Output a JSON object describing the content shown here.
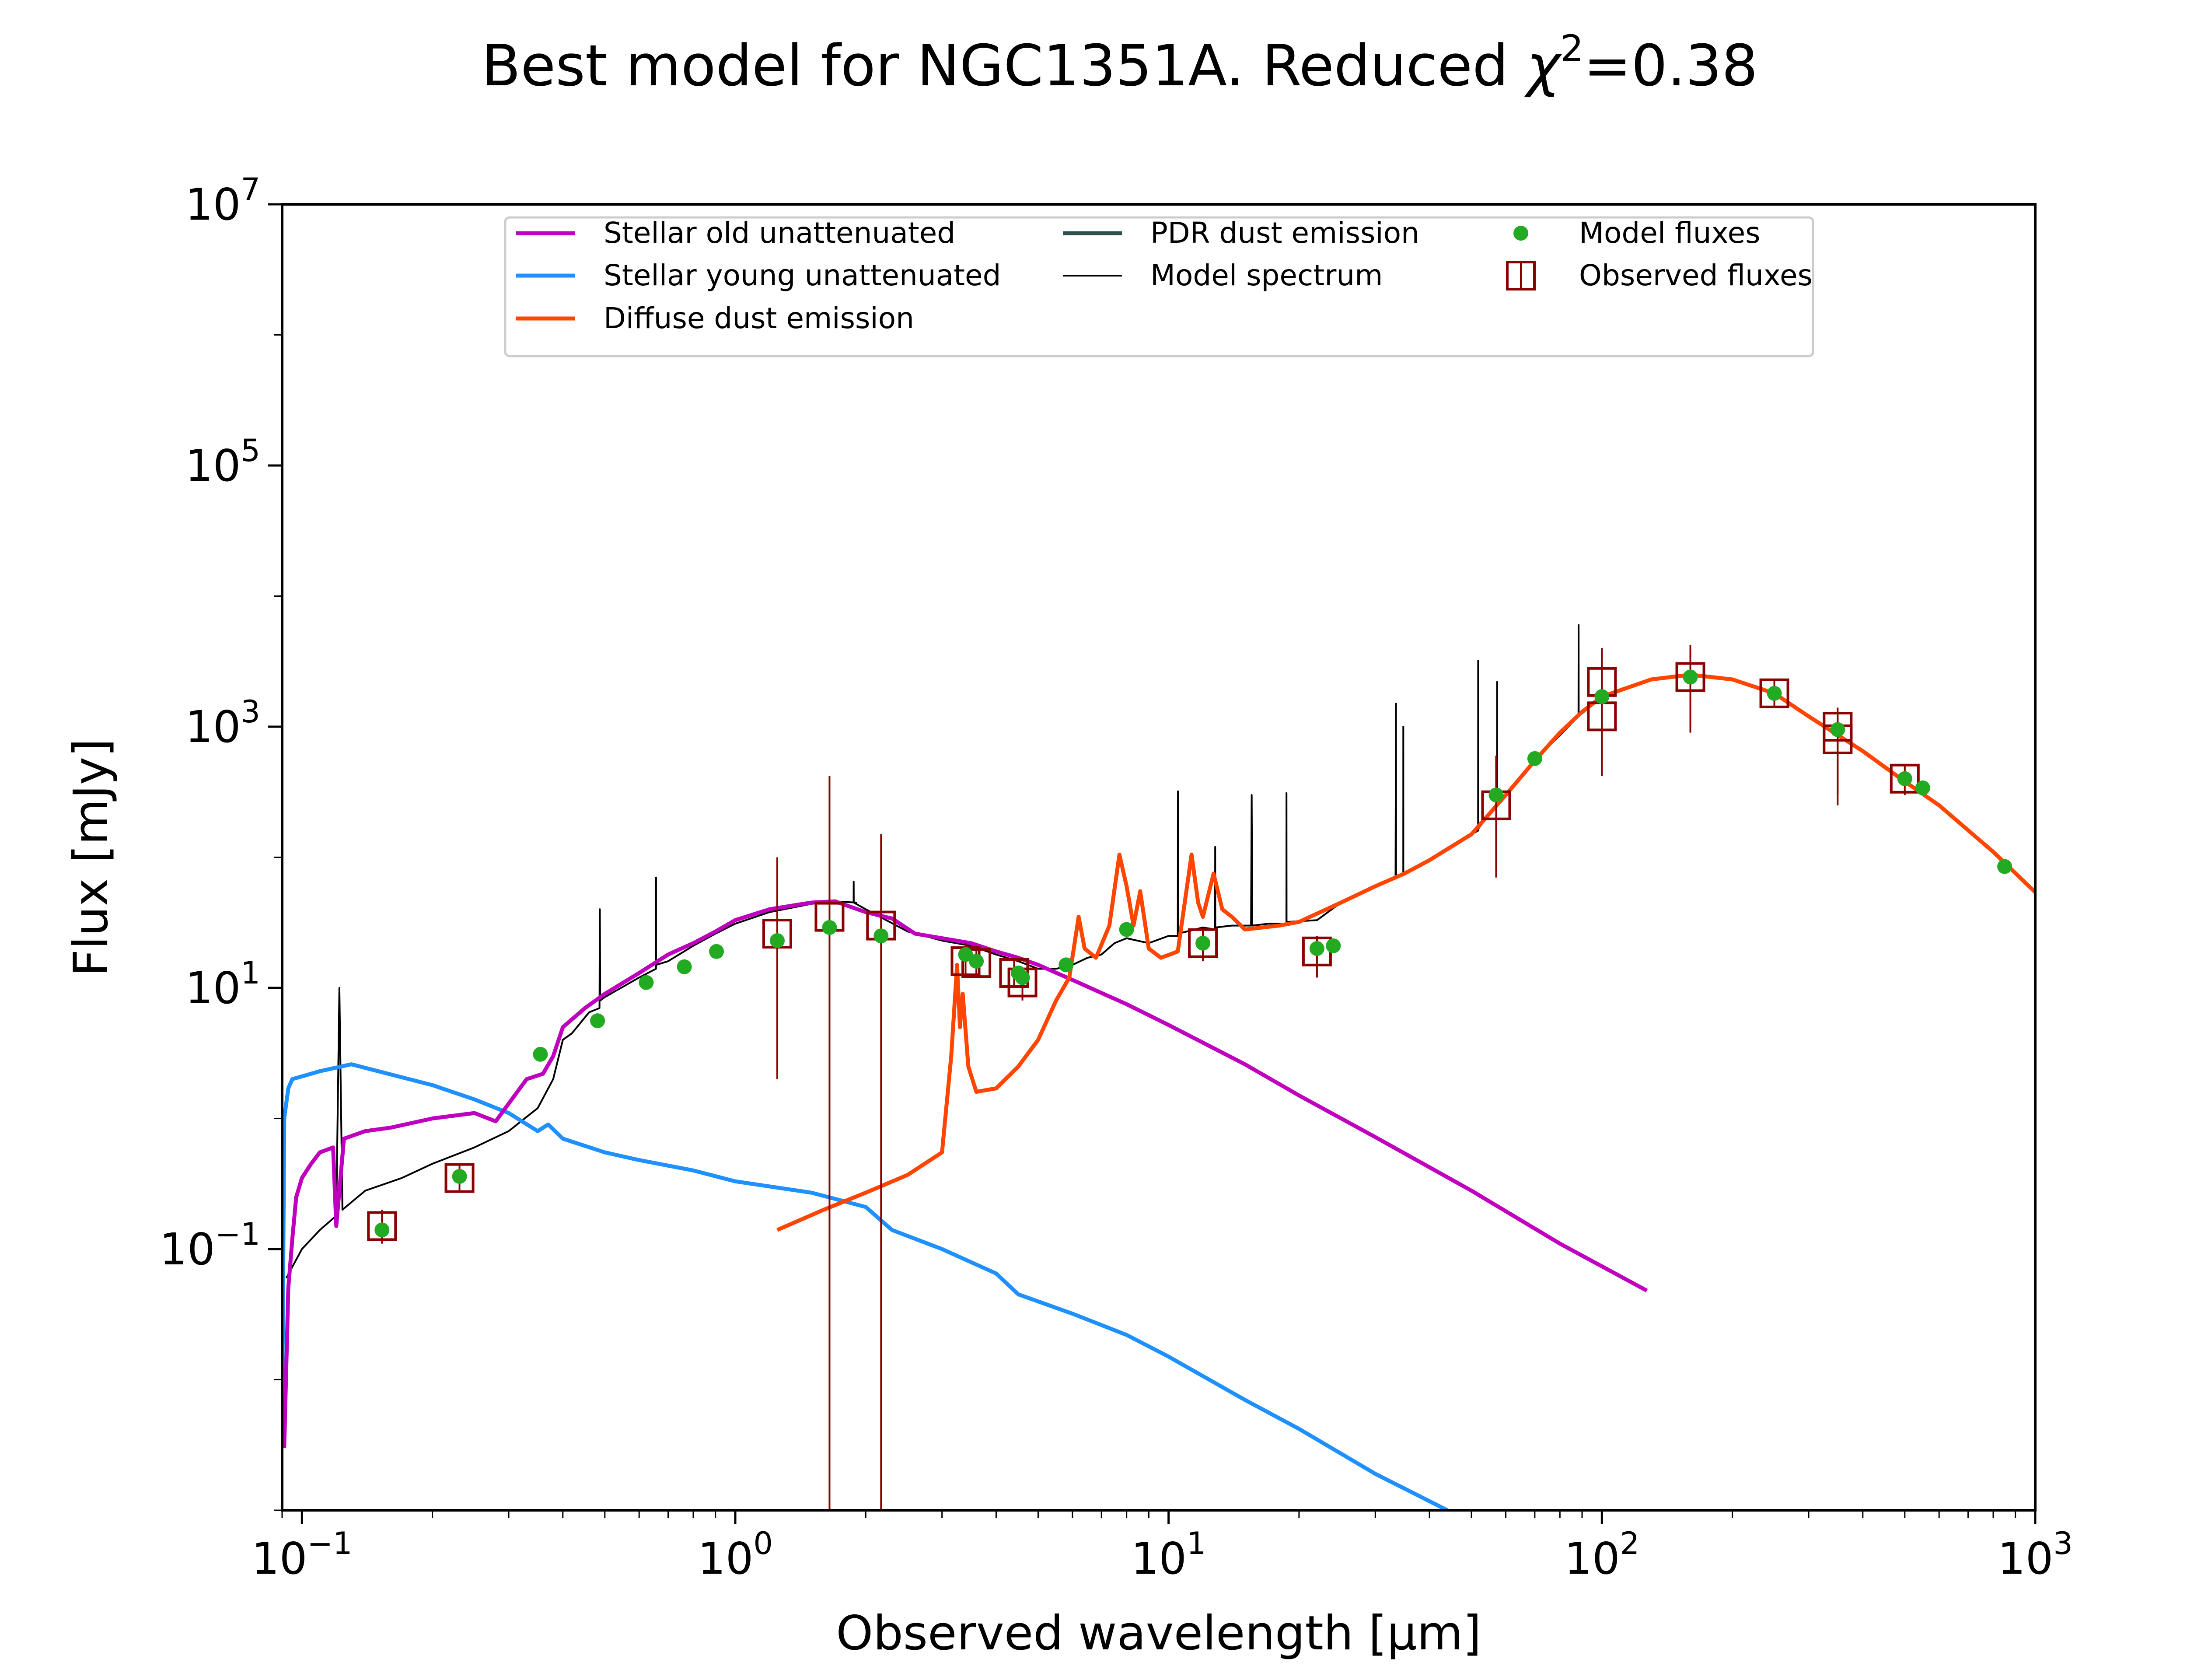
{
  "chart_data": {
    "type": "line",
    "title": "Best model for NGC1351A. Reduced χ²=0.38",
    "title_main": "Best model for NGC1351A. Reduced ",
    "title_chi": "χ",
    "title_sup": "2",
    "title_tail": "=0.38",
    "xlabel": "Observed wavelength [μm]",
    "ylabel": "Flux [mJy]",
    "x_scale": "log",
    "y_scale": "log",
    "xlim": [
      0.09,
      1000
    ],
    "ylim": [
      0.001,
      10000000
    ],
    "x_ticks": [
      {
        "value": 0.1,
        "base": "10",
        "exp": "−1"
      },
      {
        "value": 1,
        "base": "10",
        "exp": "0"
      },
      {
        "value": 10,
        "base": "10",
        "exp": "1"
      },
      {
        "value": 100,
        "base": "10",
        "exp": "2"
      },
      {
        "value": 1000,
        "base": "10",
        "exp": "3"
      }
    ],
    "y_ticks": [
      {
        "value": 0.1,
        "base": "10",
        "exp": "−1"
      },
      {
        "value": 10,
        "base": "10",
        "exp": "1"
      },
      {
        "value": 1000,
        "base": "10",
        "exp": "3"
      },
      {
        "value": 100000,
        "base": "10",
        "exp": "5"
      },
      {
        "value": 10000000,
        "base": "10",
        "exp": "7"
      }
    ],
    "grid": false,
    "legend_position": "top",
    "series": [
      {
        "name": "Stellar old unattenuated",
        "kind": "line",
        "color": "#bf00bf",
        "points": [
          [
            0.091,
            0.003
          ],
          [
            0.093,
            0.05
          ],
          [
            0.095,
            0.12
          ],
          [
            0.097,
            0.25
          ],
          [
            0.1,
            0.35
          ],
          [
            0.105,
            0.45
          ],
          [
            0.11,
            0.55
          ],
          [
            0.118,
            0.6
          ],
          [
            0.12,
            0.15
          ],
          [
            0.125,
            0.7
          ],
          [
            0.14,
            0.8
          ],
          [
            0.16,
            0.85
          ],
          [
            0.2,
            1.0
          ],
          [
            0.25,
            1.1
          ],
          [
            0.28,
            0.95
          ],
          [
            0.3,
            1.3
          ],
          [
            0.33,
            2.0
          ],
          [
            0.36,
            2.2
          ],
          [
            0.38,
            3.0
          ],
          [
            0.4,
            5.0
          ],
          [
            0.45,
            7.0
          ],
          [
            0.5,
            9.0
          ],
          [
            0.6,
            13
          ],
          [
            0.7,
            18
          ],
          [
            0.8,
            22
          ],
          [
            0.9,
            27
          ],
          [
            1.0,
            33
          ],
          [
            1.2,
            40
          ],
          [
            1.5,
            45
          ],
          [
            1.7,
            46
          ],
          [
            2.0,
            38
          ],
          [
            2.3,
            34
          ],
          [
            2.6,
            26
          ],
          [
            3.0,
            24
          ],
          [
            3.5,
            22
          ],
          [
            4.0,
            19
          ],
          [
            4.5,
            17
          ],
          [
            5.0,
            15
          ],
          [
            6.0,
            11.5
          ],
          [
            8.0,
            7.5
          ],
          [
            10.0,
            5.2
          ],
          [
            15.0,
            2.6
          ],
          [
            20.0,
            1.5
          ],
          [
            30.0,
            0.72
          ],
          [
            50.0,
            0.28
          ],
          [
            80.0,
            0.11
          ],
          [
            127.0,
            0.048
          ]
        ]
      },
      {
        "name": "Stellar young unattenuated",
        "kind": "line",
        "color": "#1e90ff",
        "points": [
          [
            0.09,
            0.004
          ],
          [
            0.091,
            1.0
          ],
          [
            0.093,
            1.7
          ],
          [
            0.095,
            2.0
          ],
          [
            0.1,
            2.1
          ],
          [
            0.11,
            2.3
          ],
          [
            0.13,
            2.6
          ],
          [
            0.15,
            2.3
          ],
          [
            0.2,
            1.8
          ],
          [
            0.25,
            1.4
          ],
          [
            0.3,
            1.1
          ],
          [
            0.35,
            0.8
          ],
          [
            0.37,
            0.9
          ],
          [
            0.4,
            0.7
          ],
          [
            0.5,
            0.55
          ],
          [
            0.6,
            0.48
          ],
          [
            0.8,
            0.4
          ],
          [
            1.0,
            0.33
          ],
          [
            1.5,
            0.27
          ],
          [
            2.0,
            0.21
          ],
          [
            2.3,
            0.14
          ],
          [
            3.0,
            0.1
          ],
          [
            4.0,
            0.065
          ],
          [
            4.5,
            0.045
          ],
          [
            6.0,
            0.032
          ],
          [
            8.0,
            0.022
          ],
          [
            10.0,
            0.015
          ],
          [
            15.0,
            0.007
          ],
          [
            20.0,
            0.0042
          ],
          [
            30.0,
            0.0019
          ],
          [
            44.0,
            0.001
          ]
        ]
      },
      {
        "name": "Diffuse dust emission",
        "kind": "line",
        "color": "#ff4500",
        "points": [
          [
            1.25,
            0.14
          ],
          [
            1.6,
            0.2
          ],
          [
            2.0,
            0.27
          ],
          [
            2.5,
            0.37
          ],
          [
            3.0,
            0.55
          ],
          [
            3.15,
            3
          ],
          [
            3.25,
            15
          ],
          [
            3.3,
            5
          ],
          [
            3.35,
            9
          ],
          [
            3.45,
            2.5
          ],
          [
            3.6,
            1.6
          ],
          [
            4.0,
            1.7
          ],
          [
            4.5,
            2.5
          ],
          [
            5.0,
            4.0
          ],
          [
            5.5,
            8.0
          ],
          [
            5.9,
            12
          ],
          [
            6.2,
            35
          ],
          [
            6.4,
            20
          ],
          [
            6.8,
            17
          ],
          [
            7.3,
            30
          ],
          [
            7.7,
            105
          ],
          [
            8.0,
            60
          ],
          [
            8.3,
            30
          ],
          [
            8.6,
            55
          ],
          [
            9.0,
            20
          ],
          [
            9.6,
            17
          ],
          [
            10.5,
            19
          ],
          [
            11.3,
            105
          ],
          [
            11.7,
            45
          ],
          [
            12.0,
            35
          ],
          [
            12.7,
            75
          ],
          [
            13.3,
            40
          ],
          [
            14.0,
            35
          ],
          [
            15.0,
            28
          ],
          [
            18.0,
            30
          ],
          [
            20.0,
            32
          ],
          [
            25.0,
            45
          ],
          [
            30.0,
            60
          ],
          [
            35.0,
            75
          ],
          [
            40.0,
            95
          ],
          [
            50.0,
            150
          ],
          [
            60.0,
            300
          ],
          [
            70.0,
            550
          ],
          [
            80.0,
            900
          ],
          [
            90.0,
            1300
          ],
          [
            100.0,
            1700
          ],
          [
            130.0,
            2300
          ],
          [
            160.0,
            2500
          ],
          [
            200.0,
            2300
          ],
          [
            250.0,
            1800
          ],
          [
            300.0,
            1200
          ],
          [
            400.0,
            650
          ],
          [
            500.0,
            380
          ],
          [
            600.0,
            250
          ],
          [
            800.0,
            110
          ],
          [
            1000.0,
            54
          ]
        ]
      },
      {
        "name": "PDR dust emission",
        "kind": "line",
        "color": "#2f4f4f",
        "points": []
      },
      {
        "name": "Model spectrum",
        "kind": "line",
        "color": "#000000",
        "points": [
          [
            0.092,
            0.06
          ],
          [
            0.1,
            0.1
          ],
          [
            0.11,
            0.14
          ],
          [
            0.12,
            0.18
          ],
          [
            0.122,
            10
          ],
          [
            0.124,
            0.2
          ],
          [
            0.14,
            0.28
          ],
          [
            0.17,
            0.35
          ],
          [
            0.2,
            0.45
          ],
          [
            0.25,
            0.6
          ],
          [
            0.3,
            0.8
          ],
          [
            0.35,
            1.2
          ],
          [
            0.38,
            2.0
          ],
          [
            0.4,
            4.0
          ],
          [
            0.42,
            4.5
          ],
          [
            0.46,
            6.5
          ],
          [
            0.486,
            7
          ],
          [
            0.487,
            40
          ],
          [
            0.488,
            8
          ],
          [
            0.5,
            8.5
          ],
          [
            0.6,
            12
          ],
          [
            0.6563,
            14
          ],
          [
            0.6564,
            70
          ],
          [
            0.6565,
            15
          ],
          [
            0.7,
            16
          ],
          [
            0.8,
            21
          ],
          [
            0.9,
            26
          ],
          [
            1.0,
            31
          ],
          [
            1.2,
            38
          ],
          [
            1.5,
            44
          ],
          [
            1.7,
            46
          ],
          [
            1.9,
            45
          ],
          [
            1.875,
            45
          ],
          [
            1.876,
            65
          ],
          [
            1.877,
            45
          ],
          [
            2.0,
            40
          ],
          [
            2.5,
            27
          ],
          [
            3.0,
            23
          ],
          [
            3.5,
            21
          ],
          [
            4.0,
            18
          ],
          [
            4.5,
            16
          ],
          [
            5.0,
            14
          ],
          [
            5.5,
            14
          ],
          [
            6.0,
            15
          ],
          [
            6.5,
            17
          ],
          [
            7.0,
            18
          ],
          [
            7.5,
            22
          ],
          [
            8.0,
            24
          ],
          [
            9.0,
            22
          ],
          [
            10.0,
            25
          ],
          [
            10.5,
            25
          ],
          [
            10.51,
            320
          ],
          [
            10.52,
            26
          ],
          [
            12.0,
            29
          ],
          [
            12.8,
            28
          ],
          [
            12.81,
            120
          ],
          [
            12.82,
            29
          ],
          [
            14.0,
            30
          ],
          [
            15.5,
            30
          ],
          [
            15.55,
            300
          ],
          [
            15.6,
            30
          ],
          [
            17.0,
            31
          ],
          [
            18.7,
            31
          ],
          [
            18.71,
            310
          ],
          [
            18.72,
            32
          ],
          [
            22.0,
            33
          ],
          [
            25.0,
            45
          ],
          [
            30.0,
            60
          ],
          [
            33.4,
            70
          ],
          [
            33.48,
            1500
          ],
          [
            33.5,
            70
          ],
          [
            35.0,
            75
          ],
          [
            34.8,
            75
          ],
          [
            34.81,
            1000
          ],
          [
            34.82,
            76
          ],
          [
            40.0,
            95
          ],
          [
            50.0,
            150
          ],
          [
            51.8,
            160
          ],
          [
            51.81,
            3200
          ],
          [
            51.82,
            165
          ],
          [
            57.0,
            250
          ],
          [
            57.3,
            250
          ],
          [
            57.31,
            2200
          ],
          [
            57.32,
            260
          ],
          [
            70.0,
            550
          ],
          [
            88.3,
            1200
          ],
          [
            88.36,
            6000
          ],
          [
            88.4,
            1200
          ],
          [
            100.0,
            1700
          ],
          [
            130.0,
            2300
          ],
          [
            160.0,
            2500
          ],
          [
            200.0,
            2300
          ],
          [
            250.0,
            1800
          ],
          [
            300.0,
            1200
          ],
          [
            400.0,
            650
          ],
          [
            500.0,
            380
          ],
          [
            600.0,
            250
          ],
          [
            800.0,
            110
          ],
          [
            1000.0,
            54
          ]
        ]
      },
      {
        "name": "Model fluxes",
        "kind": "scatter",
        "color": "#22aa22",
        "points": [
          [
            0.153,
            0.14
          ],
          [
            0.231,
            0.36
          ],
          [
            0.355,
            3.1
          ],
          [
            0.481,
            5.6
          ],
          [
            0.623,
            11
          ],
          [
            0.763,
            14.5
          ],
          [
            0.905,
            19
          ],
          [
            1.25,
            23
          ],
          [
            1.65,
            29
          ],
          [
            2.17,
            25
          ],
          [
            3.4,
            18
          ],
          [
            3.6,
            16
          ],
          [
            4.5,
            13
          ],
          [
            4.6,
            12
          ],
          [
            5.8,
            15
          ],
          [
            8.0,
            28
          ],
          [
            12.0,
            22
          ],
          [
            22.0,
            20
          ],
          [
            24.0,
            21
          ],
          [
            57.0,
            300
          ],
          [
            70.0,
            570
          ],
          [
            100.0,
            1700
          ],
          [
            160.0,
            2400
          ],
          [
            250.0,
            1800
          ],
          [
            350.0,
            950
          ],
          [
            500.0,
            400
          ],
          [
            550.0,
            340
          ],
          [
            850.0,
            85
          ]
        ]
      },
      {
        "name": "Observed fluxes",
        "kind": "errorbar",
        "color": "#8b0000",
        "points": [
          [
            0.153,
            0.15,
            0.11,
            0.2
          ],
          [
            0.231,
            0.35,
            0.27,
            0.45
          ],
          [
            1.25,
            26,
            2.0,
            100
          ],
          [
            1.65,
            35,
            0.001,
            420
          ],
          [
            2.17,
            30,
            0.001,
            150
          ],
          [
            3.4,
            16,
            12,
            22
          ],
          [
            3.6,
            15.5,
            12,
            20
          ],
          [
            4.4,
            13,
            10,
            17
          ],
          [
            4.6,
            11,
            8,
            14
          ],
          [
            12.0,
            22,
            16,
            28
          ],
          [
            22.0,
            19,
            12,
            25
          ],
          [
            57.0,
            250,
            70,
            600
          ],
          [
            100.0,
            1200,
            420,
            2500
          ],
          [
            100.0,
            2200,
            560,
            4000
          ],
          [
            160.0,
            2400,
            900,
            4200
          ],
          [
            250.0,
            1800,
            1400,
            2300
          ],
          [
            350.0,
            800,
            250,
            1200
          ],
          [
            350.0,
            1000,
            300,
            1400
          ],
          [
            500.0,
            400,
            300,
            500
          ]
        ]
      }
    ]
  }
}
